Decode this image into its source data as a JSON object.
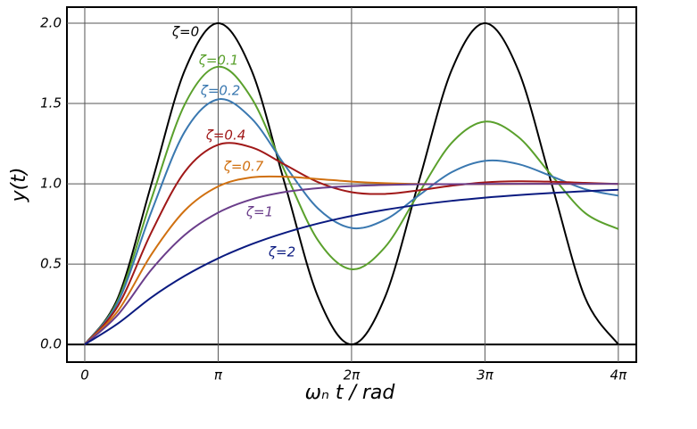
{
  "chart_data": {
    "type": "line",
    "x_label": "ωₙ t / rad",
    "y_label": "y(t)",
    "x": [
      0,
      0.785,
      1.571,
      2.356,
      3.142,
      3.927,
      4.712,
      5.498,
      6.283,
      7.069,
      7.854,
      8.639,
      9.425,
      10.21,
      10.996,
      11.781,
      12.566
    ],
    "series": [
      {
        "name": "ζ=0",
        "color": "#000000",
        "values": [
          0,
          0.293,
          1,
          1.707,
          2,
          1.707,
          1,
          0.293,
          0,
          0.293,
          1,
          1.707,
          2,
          1.707,
          1,
          0.293,
          0
        ]
      },
      {
        "name": "ζ=0.1",
        "color": "#5aa02c",
        "values": [
          0,
          0.278,
          0.907,
          1.495,
          1.729,
          1.534,
          1.078,
          0.646,
          0.468,
          0.605,
          0.936,
          1.254,
          1.387,
          1.292,
          1.052,
          0.819,
          0.718
        ]
      },
      {
        "name": "ζ=0.2",
        "color": "#3a78b0",
        "values": [
          0,
          0.265,
          0.828,
          1.325,
          1.526,
          1.407,
          1.116,
          0.845,
          0.725,
          0.776,
          0.925,
          1.072,
          1.143,
          1.123,
          1.047,
          0.967,
          0.926
        ]
      },
      {
        "name": "ζ=0.4",
        "color": "#a01818",
        "values": [
          0,
          0.241,
          0.699,
          1.075,
          1.243,
          1.227,
          1.119,
          1.01,
          0.948,
          0.937,
          0.959,
          0.988,
          1.009,
          1.016,
          1.013,
          1.006,
          0.999
        ]
      },
      {
        "name": "ζ=0.7",
        "color": "#d07010",
        "values": [
          0,
          0.21,
          0.561,
          0.834,
          0.984,
          1.04,
          1.044,
          1.03,
          1.014,
          1.004,
          0.999,
          0.998,
          0.998,
          0.999,
          1,
          1,
          1
        ]
      },
      {
        "name": "ζ=1",
        "color": "#6a3d8a",
        "values": [
          0,
          0.186,
          0.466,
          0.682,
          0.821,
          0.903,
          0.949,
          0.973,
          0.986,
          0.993,
          0.997,
          0.998,
          0.999,
          1,
          1,
          1,
          1
        ]
      },
      {
        "name": "ζ=2",
        "color": "#0a1a80",
        "values": [
          0,
          0.131,
          0.293,
          0.427,
          0.536,
          0.624,
          0.695,
          0.753,
          0.8,
          0.838,
          0.869,
          0.894,
          0.914,
          0.93,
          0.943,
          0.954,
          0.963
        ]
      }
    ],
    "xlim": [
      -0.42,
      12.99
    ],
    "ylim": [
      -0.11,
      2.1
    ],
    "xticks": [
      0,
      {
        "value": 3.14159,
        "label": "π"
      },
      {
        "value": 6.28319,
        "label": "2π"
      },
      {
        "value": 9.42478,
        "label": "3π"
      },
      {
        "value": 12.56637,
        "label": "4π"
      }
    ],
    "yticks": [
      {
        "value": 0,
        "label": "0.0"
      },
      0.5,
      {
        "value": 1,
        "label": "1.0"
      },
      1.5,
      {
        "value": 2,
        "label": "2.0"
      }
    ],
    "grid": true
  }
}
